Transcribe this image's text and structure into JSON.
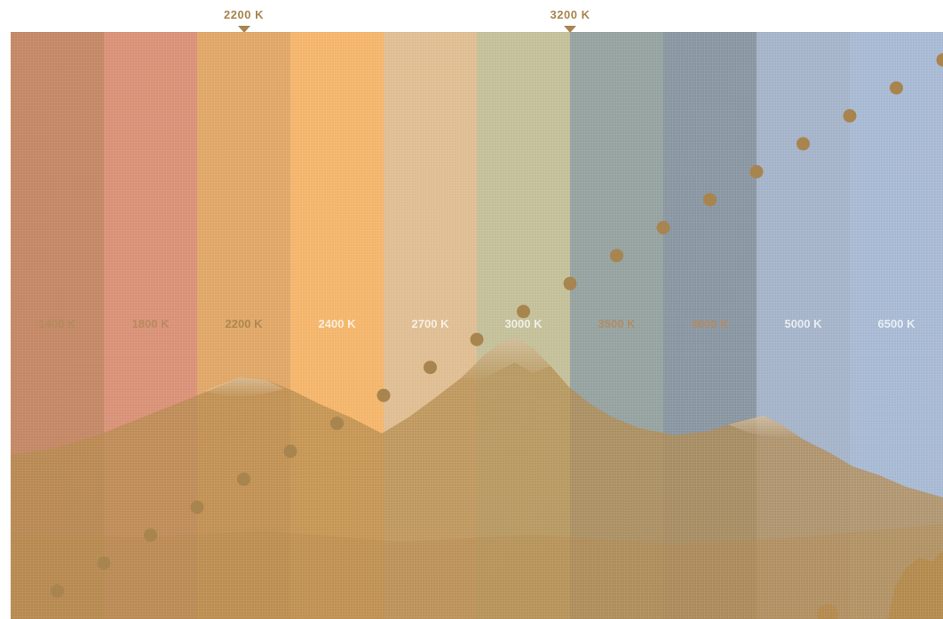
{
  "chart_data": {
    "type": "scatter",
    "categories": [
      "1400 K",
      "1800 K",
      "2200 K",
      "2400 K",
      "2700 K",
      "3000 K",
      "3500 K",
      "4000 K",
      "5000 K",
      "6500 K"
    ],
    "band_colors": [
      "#c48866",
      "#d99278",
      "#e0a768",
      "#f4b66c",
      "#dfbe93",
      "#c3c09a",
      "#96a3a0",
      "#8a97a2",
      "#a5b4c9",
      "#a8bad3"
    ],
    "band_label_colors": [
      "#b48a5e",
      "#b48a5e",
      "#a8844e",
      "#ffffff",
      "#ffffff",
      "#ffffff",
      "#b48a5e",
      "#b48a5e",
      "#ffffff",
      "#ffffff"
    ],
    "markers": [
      {
        "label": "2200 K",
        "category_index": 2
      },
      {
        "label": "3200 K",
        "category_index": 5.5
      }
    ],
    "series": [
      {
        "values": [
          2.0,
          4.0,
          6.0,
          8.0,
          10.0,
          12.0,
          14.0,
          16.0,
          18.0,
          20.0,
          22.0,
          24.0,
          26.0,
          28.0,
          30.0,
          32.0,
          34.0,
          36.0,
          38.0,
          40.0
        ]
      }
    ],
    "ylim": [
      0,
      42
    ],
    "dot_color": "#a8844e",
    "mountain_color": "#b48a4e",
    "grid": false,
    "legend": "none"
  }
}
